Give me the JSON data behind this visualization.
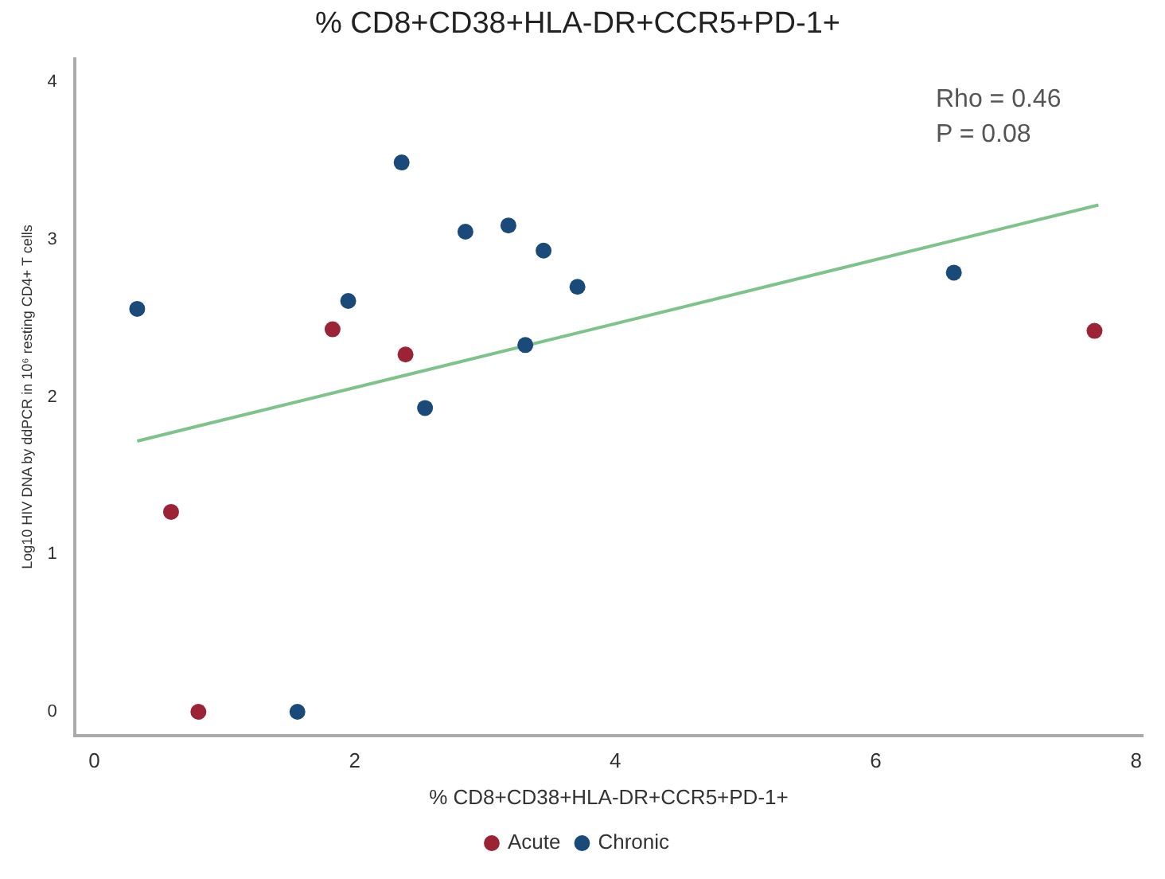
{
  "chart_data": {
    "type": "scatter",
    "title": "% CD8+CD38+HLA-DR+CCR5+PD-1+",
    "xlabel": "% CD8+CD38+HLA-DR+CCR5+PD-1+",
    "ylabel": "Log10 HIV DNA by ddPCR in 10⁶ resting CD4+ T cells",
    "annotations": [
      "Rho = 0.46",
      "P = 0.08"
    ],
    "xlim": [
      -0.15,
      8.05
    ],
    "xticks": [
      0,
      2,
      4,
      6,
      8
    ],
    "ylim": [
      -0.15,
      4.15
    ],
    "yticks": [
      0,
      1,
      2,
      3,
      4
    ],
    "grid": false,
    "legend": "bottom",
    "marker": "circle",
    "series": [
      {
        "name": "Acute",
        "color": "#9b2335",
        "x": [
          1.83,
          2.39,
          0.59,
          0.8,
          7.68
        ],
        "values": [
          2.43,
          2.27,
          1.27,
          0,
          2.42
        ]
      },
      {
        "name": "Chronic",
        "color": "#1a4a7a",
        "x": [
          0.33,
          2.36,
          2.85,
          3.18,
          3.45,
          3.71,
          1.95,
          3.31,
          2.54,
          1.56,
          6.6
        ],
        "values": [
          2.56,
          3.49,
          3.05,
          3.09,
          2.93,
          2.7,
          2.61,
          2.33,
          1.93,
          0,
          2.79
        ]
      },
      {
        "type": "line",
        "color": "#7cc48a",
        "x": [
          0.33,
          7.71
        ],
        "values": [
          1.72,
          3.22
        ],
        "marker": "none",
        "line_style": "solid"
      }
    ]
  }
}
